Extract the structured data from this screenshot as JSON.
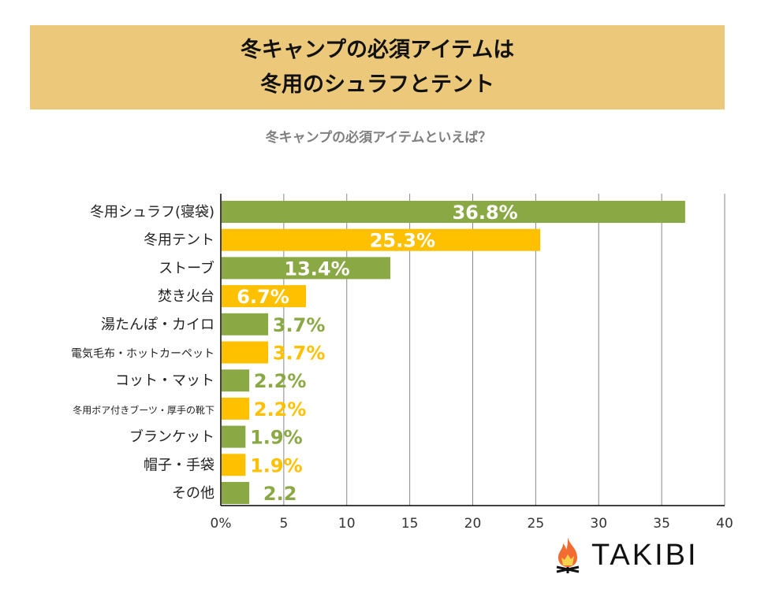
{
  "header": {
    "line1": "冬キャンプの必須アイテムは",
    "line2": "冬用のシュラフとテント"
  },
  "logo": {
    "text": "TAKIBI"
  },
  "chart_data": {
    "type": "bar",
    "orientation": "horizontal",
    "title": "冬キャンプの必須アイテムといえば？",
    "categories": [
      "冬用シュラフ(寝袋)",
      "冬用テント",
      "ストーブ",
      "焚き火台",
      "湯たんぽ・カイロ",
      "電気毛布・ホットカーペット",
      "コット・マット",
      "冬用ボア付きブーツ・厚手の靴下",
      "ブランケット",
      "帽子・手袋",
      "その他"
    ],
    "values": [
      36.8,
      25.3,
      13.4,
      6.7,
      3.7,
      3.7,
      2.2,
      2.2,
      1.9,
      1.9,
      2.2
    ],
    "data_labels": [
      "36.8%",
      "25.3%",
      "13.4%",
      "6.7%",
      "3.7%",
      "3.7%",
      "2.2%",
      "2.2%",
      "1.9%",
      "1.9%",
      "2.2"
    ],
    "xlim": [
      0,
      40
    ],
    "xticks": [
      "0%",
      "5",
      "10",
      "15",
      "20",
      "25",
      "30",
      "35",
      "40"
    ],
    "grid": true,
    "colors": [
      "#8aa843",
      "#ffc000"
    ]
  }
}
